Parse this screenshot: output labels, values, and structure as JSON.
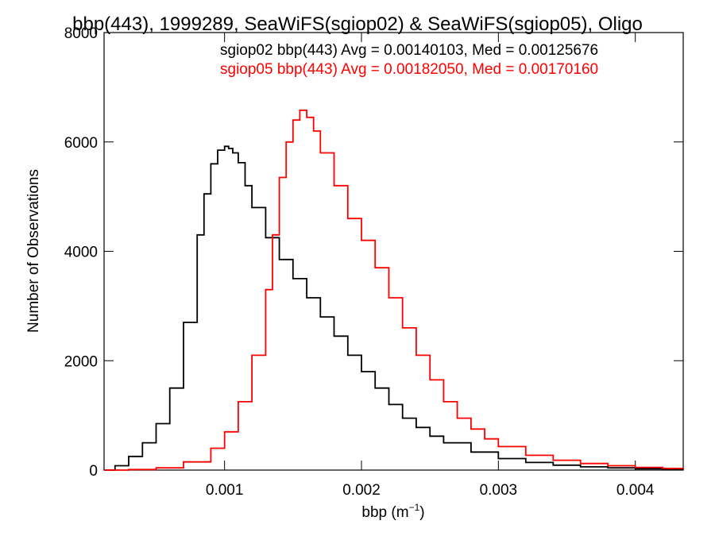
{
  "chart_data": {
    "type": "line",
    "title": "bbp(443), 1999289, SeaWiFS(sgiop02) & SeaWiFS(sgiop05), Oligo",
    "xlabel": "bbp (m",
    "xlabel_sup": "−1",
    "xlabel_suffix": ")",
    "ylabel": "Number of Observations",
    "xlim": [
      0.00012,
      0.00435
    ],
    "ylim": [
      0,
      8000
    ],
    "xticks": [
      {
        "value": 0.001,
        "label": "0.001"
      },
      {
        "value": 0.002,
        "label": "0.002"
      },
      {
        "value": 0.003,
        "label": "0.003"
      },
      {
        "value": 0.004,
        "label": "0.004"
      }
    ],
    "yticks": [
      {
        "value": 0,
        "label": "0"
      },
      {
        "value": 2000,
        "label": "2000"
      },
      {
        "value": 4000,
        "label": "4000"
      },
      {
        "value": 6000,
        "label": "6000"
      },
      {
        "value": 8000,
        "label": "8000"
      }
    ],
    "grid": false,
    "step": true,
    "annotations": [
      {
        "text": "sgiop02 bbp(443) Avg = 0.00140103, Med = 0.00125676",
        "color": "#000000"
      },
      {
        "text": "sgiop05 bbp(443) Avg = 0.00182050, Med = 0.00170160",
        "color": "#ff0000"
      }
    ],
    "series": [
      {
        "color": "#000000",
        "x": [
          0.00012,
          0.0002,
          0.0003,
          0.0004,
          0.0005,
          0.0006,
          0.0007,
          0.0008,
          0.00085,
          0.0009,
          0.00095,
          0.001,
          0.00103,
          0.00106,
          0.0011,
          0.00115,
          0.0012,
          0.0013,
          0.0014,
          0.0015,
          0.0016,
          0.0017,
          0.0018,
          0.0019,
          0.002,
          0.0021,
          0.0022,
          0.0023,
          0.0024,
          0.0025,
          0.0026,
          0.0028,
          0.003,
          0.0032,
          0.0034,
          0.0036,
          0.0038,
          0.004,
          0.0042,
          0.00435
        ],
        "y": [
          0,
          80,
          250,
          500,
          850,
          1500,
          2700,
          4300,
          5050,
          5600,
          5850,
          5920,
          5880,
          5800,
          5620,
          5200,
          4800,
          4250,
          3850,
          3500,
          3150,
          2800,
          2450,
          2100,
          1800,
          1500,
          1200,
          950,
          780,
          620,
          500,
          330,
          210,
          140,
          90,
          60,
          40,
          25,
          15,
          10
        ]
      },
      {
        "color": "#ff0000",
        "x": [
          0.00012,
          0.0003,
          0.0005,
          0.0007,
          0.0009,
          0.001,
          0.0011,
          0.0012,
          0.0013,
          0.00135,
          0.0014,
          0.00145,
          0.0015,
          0.00155,
          0.0016,
          0.00165,
          0.0017,
          0.0018,
          0.0019,
          0.002,
          0.0021,
          0.0022,
          0.0023,
          0.0024,
          0.0025,
          0.0026,
          0.0027,
          0.0028,
          0.0029,
          0.003,
          0.0032,
          0.0034,
          0.0036,
          0.0038,
          0.004,
          0.0042,
          0.00435
        ],
        "y": [
          0,
          10,
          40,
          150,
          400,
          700,
          1250,
          2100,
          3300,
          4300,
          5350,
          6000,
          6400,
          6580,
          6450,
          6200,
          5800,
          5200,
          4600,
          4200,
          3700,
          3150,
          2600,
          2100,
          1650,
          1250,
          950,
          750,
          570,
          430,
          270,
          180,
          120,
          80,
          50,
          30,
          20
        ]
      }
    ]
  }
}
